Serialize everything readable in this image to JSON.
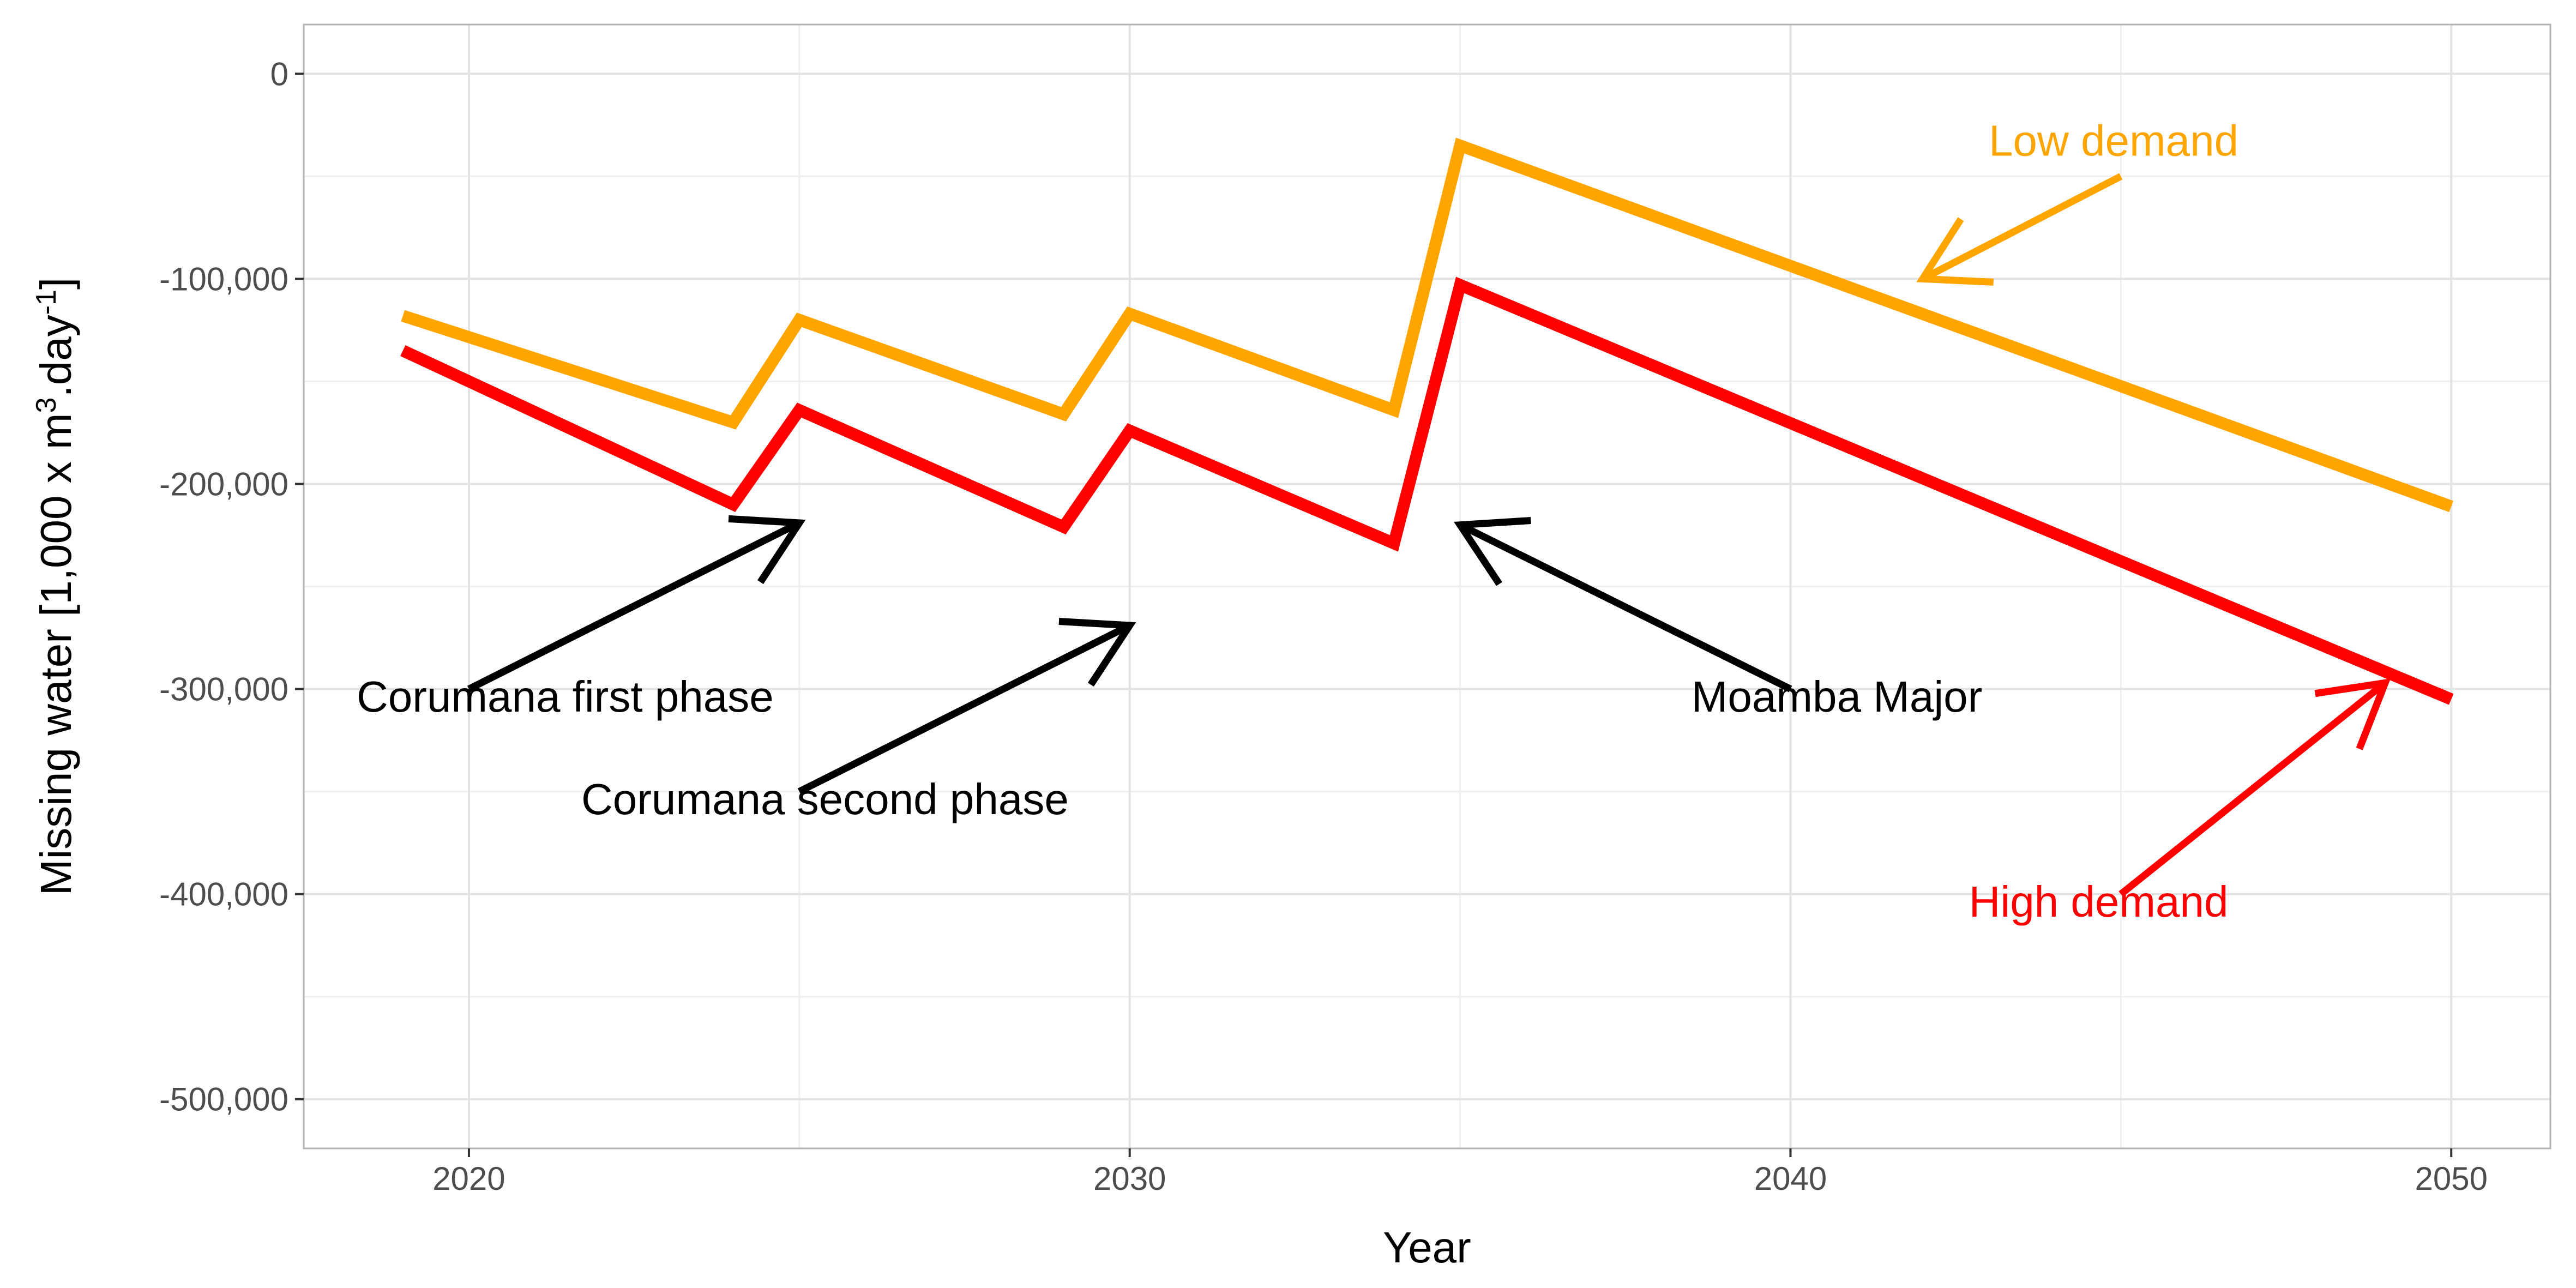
{
  "chart_data": {
    "type": "line",
    "xlabel": "Year",
    "ylabel": "Missing water [1,000 x m",
    "ylabel_sup1": "3",
    "ylabel_mid": ".day",
    "ylabel_sup2": "-1",
    "ylabel_end": "]",
    "xlim": [
      2017.5,
      2051.5
    ],
    "ylim": [
      -524000,
      24000
    ],
    "x_ticks": [
      2020,
      2030,
      2040,
      2050
    ],
    "x_tick_labels": [
      "2020",
      "2030",
      "2040",
      "2050"
    ],
    "x_minor_ticks": [
      2025,
      2035,
      2045
    ],
    "y_ticks": [
      0,
      -100000,
      -200000,
      -300000,
      -400000,
      -500000
    ],
    "y_tick_labels": [
      "0",
      "-100,000",
      "-200,000",
      "-300,000",
      "-400,000",
      "-500,000"
    ],
    "y_minor_ticks": [
      -50000,
      -150000,
      -250000,
      -350000,
      -450000
    ],
    "grid": true,
    "legend": "none",
    "series": [
      {
        "color": "#FFA500",
        "points": [
          [
            2019,
            -118000
          ],
          [
            2024,
            -170000
          ],
          [
            2025,
            -120000
          ],
          [
            2029,
            -166000
          ],
          [
            2030,
            -117000
          ],
          [
            2034,
            -164000
          ],
          [
            2035,
            -35000
          ],
          [
            2050,
            -211000
          ]
        ]
      },
      {
        "color": "#FF0000",
        "points": [
          [
            2019,
            -135000
          ],
          [
            2024,
            -210000
          ],
          [
            2025,
            -164000
          ],
          [
            2029,
            -221000
          ],
          [
            2030,
            -174000
          ],
          [
            2034,
            -229000
          ],
          [
            2035,
            -103000
          ],
          [
            2050,
            -305000
          ]
        ]
      }
    ],
    "annotations": [
      {
        "text": "Low demand",
        "color": "#FFA500",
        "x": 2043.0,
        "y": -40000,
        "anchor": "start",
        "arrow": {
          "from": [
            2045.0,
            -50000
          ],
          "to": [
            2042.0,
            -100000
          ]
        }
      },
      {
        "text": "High demand",
        "color": "#FF0000",
        "x": 2042.7,
        "y": -411000,
        "anchor": "start",
        "arrow": {
          "from": [
            2045.0,
            -400000
          ],
          "to": [
            2049.0,
            -297000
          ]
        }
      },
      {
        "text": "Corumana first phase",
        "color": "#000000",
        "x": 2018.3,
        "y": -311000,
        "anchor": "start",
        "arrow": {
          "from": [
            2020.0,
            -300000
          ],
          "to": [
            2025.0,
            -219000
          ]
        }
      },
      {
        "text": "Corumana second phase",
        "color": "#000000",
        "x": 2021.7,
        "y": -361000,
        "anchor": "start",
        "arrow": {
          "from": [
            2025.0,
            -350000
          ],
          "to": [
            2030.0,
            -269000
          ]
        }
      },
      {
        "text": "Moamba Major",
        "color": "#000000",
        "x": 2038.5,
        "y": -311000,
        "anchor": "start",
        "arrow": {
          "from": [
            2040.0,
            -300000
          ],
          "to": [
            2035.0,
            -220000
          ]
        }
      }
    ]
  }
}
